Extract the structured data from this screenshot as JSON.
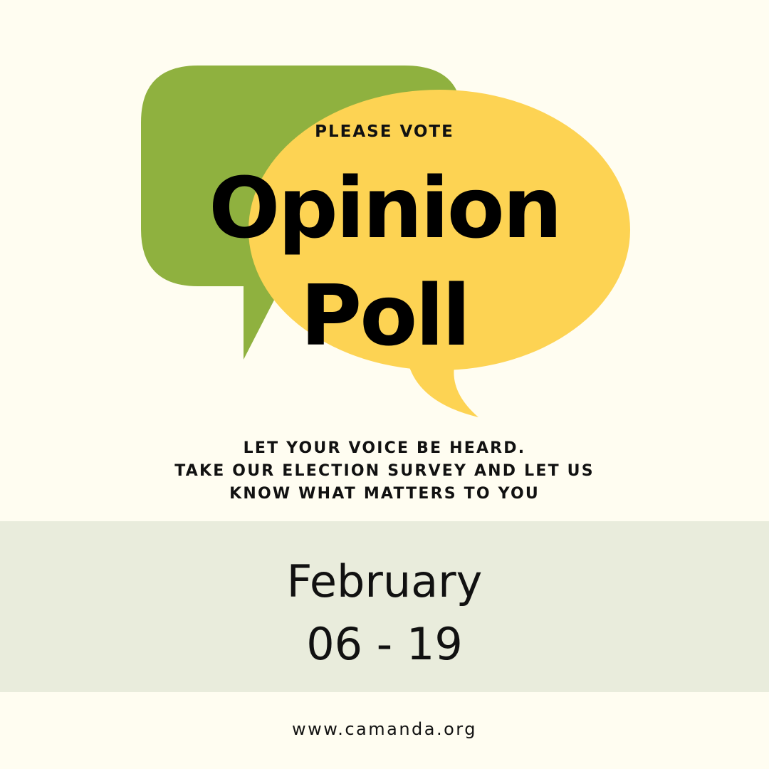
{
  "header": {
    "kicker": "PLEASE VOTE"
  },
  "title": {
    "line1": "Opinion",
    "line2": "Poll"
  },
  "tagline": {
    "lines": [
      "LET YOUR VOICE BE HEARD.",
      "TAKE OUR ELECTION SURVEY AND LET US",
      "KNOW WHAT MATTERS TO YOU"
    ]
  },
  "dates": {
    "month": "February",
    "range": "06 - 19"
  },
  "footer": {
    "website": "www.camanda.org"
  },
  "colors": {
    "background": "#fffdf1",
    "green_bubble": "#8fb13f",
    "yellow_bubble": "#fdd353",
    "date_band": "#e9ecdc",
    "text": "#111111"
  },
  "icons": [
    "speech-bubble-green",
    "speech-bubble-yellow"
  ]
}
